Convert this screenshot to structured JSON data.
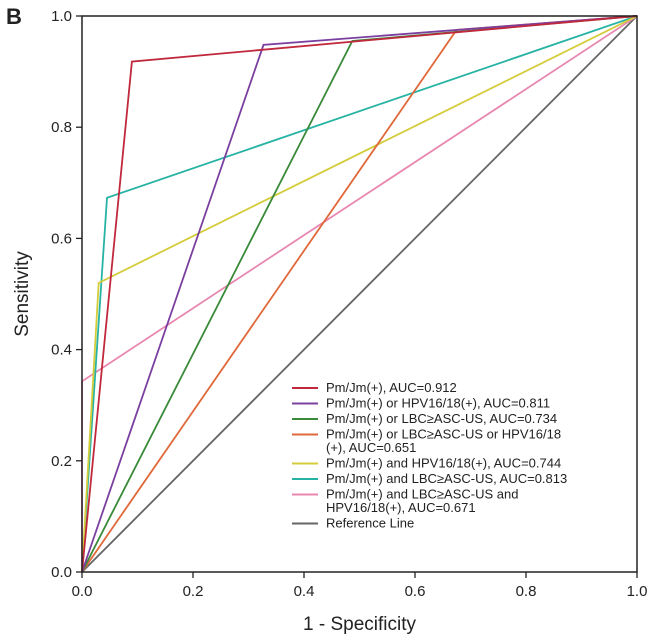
{
  "panel_label": "B",
  "chart_data": {
    "type": "line",
    "xlabel": "1 - Specificity",
    "ylabel": "Sensitivity",
    "xlim": [
      0,
      1
    ],
    "ylim": [
      0,
      1
    ],
    "x_ticks": [
      "0.0",
      "0.2",
      "0.4",
      "0.6",
      "0.8",
      "1.0"
    ],
    "y_ticks": [
      "0.0",
      "0.2",
      "0.4",
      "0.6",
      "0.8",
      "1.0"
    ],
    "legend_position": "bottom-right",
    "grid": false,
    "series": [
      {
        "name": "Pm/Jm(+), AUC=0.912",
        "name_lines": [
          "Pm/Jm(+), AUC=0.912"
        ],
        "color": "#c0283c",
        "points": [
          [
            0,
            0
          ],
          [
            0.09,
            0.918
          ],
          [
            1,
            1
          ]
        ]
      },
      {
        "name": "Pm/Jm(+) or HPV16/18(+), AUC=0.811",
        "name_lines": [
          "Pm/Jm(+) or HPV16/18(+), AUC=0.811"
        ],
        "color": "#7b3fa0",
        "points": [
          [
            0,
            0
          ],
          [
            0.327,
            0.948
          ],
          [
            1,
            1
          ]
        ]
      },
      {
        "name": "Pm/Jm(+) or LBC≥ASC-US, AUC=0.734",
        "name_lines": [
          "Pm/Jm(+) or LBC≥ASC-US, AUC=0.734"
        ],
        "color": "#3a8a3a",
        "points": [
          [
            0,
            0
          ],
          [
            0.487,
            0.955
          ],
          [
            1,
            1
          ]
        ]
      },
      {
        "name": "Pm/Jm(+) or LBC≥ASC-US or HPV16/18 (+), AUC=0.651",
        "name_lines": [
          "Pm/Jm(+) or LBC≥ASC-US or HPV16/18",
          "(+), AUC=0.651"
        ],
        "color": "#e0693a",
        "points": [
          [
            0,
            0
          ],
          [
            0.675,
            0.975
          ],
          [
            1,
            1
          ]
        ]
      },
      {
        "name": "Pm/Jm(+) and HPV16/18(+), AUC=0.744",
        "name_lines": [
          "Pm/Jm(+) and HPV16/18(+), AUC=0.744"
        ],
        "color": "#d4cc3a",
        "points": [
          [
            0,
            0
          ],
          [
            0.03,
            0.52
          ],
          [
            1,
            1
          ]
        ]
      },
      {
        "name": "Pm/Jm(+) and LBC≥ASC-US, AUC=0.813",
        "name_lines": [
          "Pm/Jm(+) and LBC≥ASC-US, AUC=0.813"
        ],
        "color": "#27b3a4",
        "points": [
          [
            0,
            0
          ],
          [
            0.045,
            0.673
          ],
          [
            1,
            1
          ]
        ]
      },
      {
        "name": "Pm/Jm(+) and LBC≥ASC-US and HPV16/18(+), AUC=0.671",
        "name_lines": [
          "Pm/Jm(+) and LBC≥ASC-US and",
          "HPV16/18(+), AUC=0.671"
        ],
        "color": "#e887b0",
        "points": [
          [
            0,
            0
          ],
          [
            0,
            0.343
          ],
          [
            1,
            1
          ]
        ]
      },
      {
        "name": "Reference Line",
        "name_lines": [
          "Reference Line"
        ],
        "color": "#666666",
        "points": [
          [
            0,
            0
          ],
          [
            1,
            1
          ]
        ]
      }
    ]
  }
}
